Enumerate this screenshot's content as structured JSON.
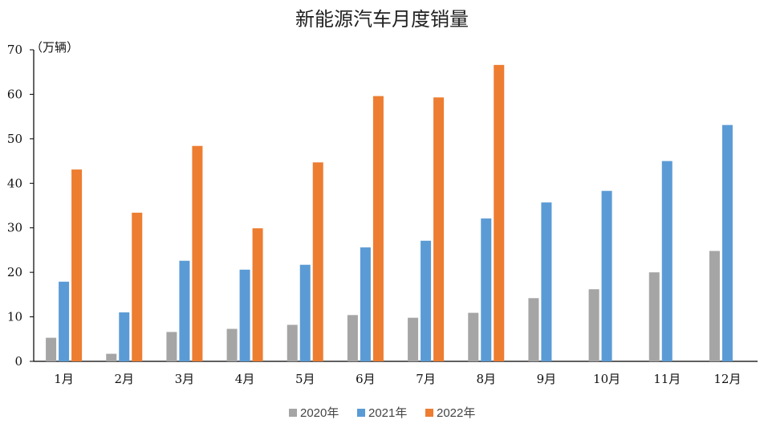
{
  "chart_data": {
    "type": "bar",
    "title": "新能源汽车月度销量",
    "unit_label": "（万辆）",
    "categories": [
      "1月",
      "2月",
      "3月",
      "4月",
      "5月",
      "6月",
      "7月",
      "8月",
      "9月",
      "10月",
      "11月",
      "12月"
    ],
    "series": [
      {
        "name": "2020年",
        "color": "#a5a5a5",
        "values": [
          5.3,
          1.7,
          6.6,
          7.3,
          8.2,
          10.4,
          9.8,
          10.9,
          14.2,
          16.2,
          20.0,
          24.8
        ]
      },
      {
        "name": "2021年",
        "color": "#5b9bd5",
        "values": [
          17.9,
          11.0,
          22.6,
          20.6,
          21.7,
          25.6,
          27.1,
          32.1,
          35.7,
          38.3,
          45.0,
          53.1
        ]
      },
      {
        "name": "2022年",
        "color": "#ed7d31",
        "values": [
          43.1,
          33.4,
          48.4,
          29.9,
          44.7,
          59.6,
          59.3,
          66.6,
          null,
          null,
          null,
          null
        ]
      }
    ],
    "ylim": [
      0,
      70
    ],
    "yticks": [
      0,
      10,
      20,
      30,
      40,
      50,
      60,
      70
    ],
    "legend": "bottom",
    "grid": false
  }
}
